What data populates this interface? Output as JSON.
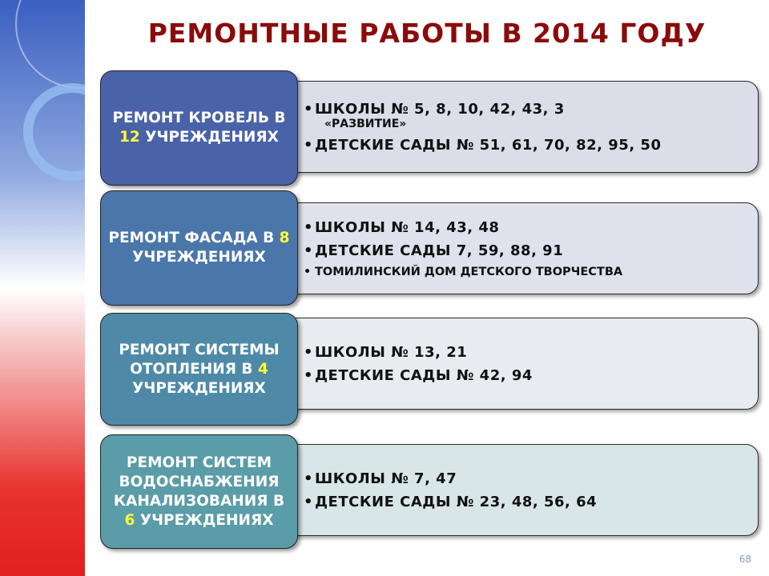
{
  "title": "РЕМОНТНЫЕ РАБОТЫ В 2014 ГОДУ",
  "rows": [
    {
      "label": {
        "before": "РЕМОНТ КРОВЕЛЬ В",
        "number": 12,
        "after": "УЧРЕЖДЕНИЯХ"
      },
      "bullets": [
        "ШКОЛЫ № 5, 8, 10, 42, 43, 3",
        "ДЕТСКИЕ САДЫ № 51, 61, 70, 82, 95, 50"
      ],
      "note": "«РАЗВИТИЕ»"
    },
    {
      "label": {
        "before": "РЕМОНТ ФАСАДА В",
        "number": 8,
        "after": "УЧРЕЖДЕНИЯХ"
      },
      "bullets": [
        "ШКОЛЫ № 14, 43, 48",
        "ДЕТСКИЕ САДЫ 7, 59, 88, 91",
        "ТОМИЛИНСКИЙ ДОМ ДЕТСКОГО ТВОРЧЕСТВА"
      ]
    },
    {
      "label": {
        "before": "РЕМОНТ СИСТЕМЫ ОТОПЛЕНИЯ В",
        "number": 4,
        "after": "УЧРЕЖДЕНИЯХ"
      },
      "bullets": [
        "ШКОЛЫ № 13, 21",
        "ДЕТСКИЕ САДЫ № 42, 94"
      ]
    },
    {
      "label": {
        "before": "РЕМОНТ СИСТЕМ ВОДОСНАБЖЕНИЯ КАНАЛИЗОВАНИЯ В",
        "number": 6,
        "after": "УЧРЕЖДЕНИЯХ"
      },
      "bullets": [
        "ШКОЛЫ № 7, 47",
        "ДЕТСКИЕ САДЫ № 23, 48, 56, 64"
      ]
    }
  ],
  "page_number": 68
}
